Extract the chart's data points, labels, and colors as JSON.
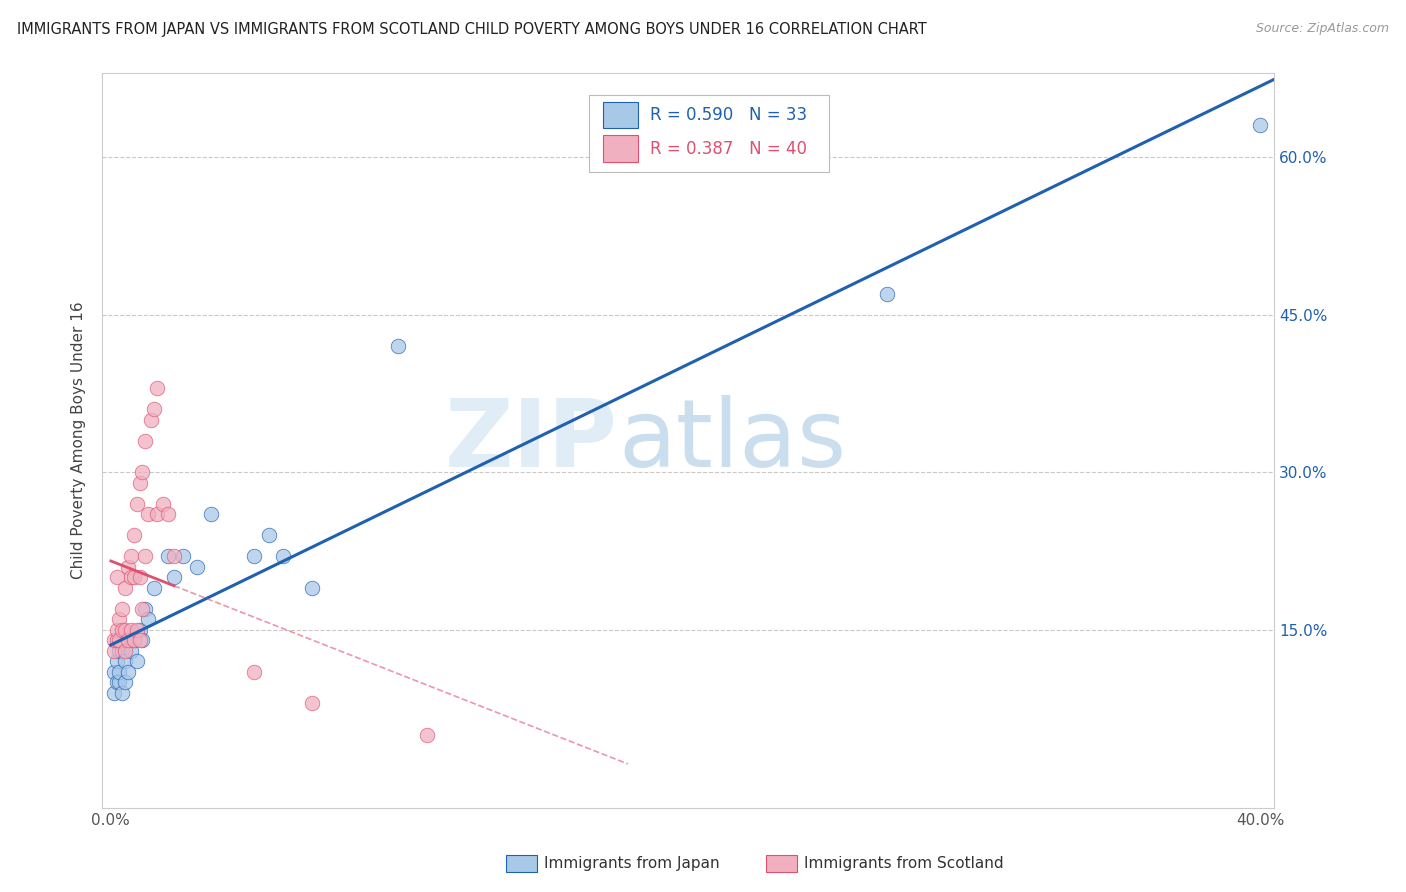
{
  "title": "IMMIGRANTS FROM JAPAN VS IMMIGRANTS FROM SCOTLAND CHILD POVERTY AMONG BOYS UNDER 16 CORRELATION CHART",
  "source": "Source: ZipAtlas.com",
  "ylabel": "Child Poverty Among Boys Under 16",
  "xticklabels": [
    "0.0%",
    "",
    "",
    "",
    "40.0%"
  ],
  "yticklabels": [
    "15.0%",
    "30.0%",
    "45.0%",
    "60.0%"
  ],
  "xlim": [
    -0.003,
    0.405
  ],
  "ylim": [
    -0.02,
    0.68
  ],
  "legend_label1": "Immigrants from Japan",
  "legend_label2": "Immigrants from Scotland",
  "R1": "0.590",
  "N1": "33",
  "R2": "0.387",
  "N2": "40",
  "color_japan": "#a8c8e8",
  "color_japan_line": "#2060b0",
  "color_scotland": "#f0b0c0",
  "color_scotland_line": "#e05070",
  "background_color": "#ffffff",
  "grid_color": "#bbbbbb",
  "japan_x": [
    0.001,
    0.001,
    0.002,
    0.002,
    0.003,
    0.003,
    0.003,
    0.004,
    0.004,
    0.005,
    0.005,
    0.005,
    0.006,
    0.007,
    0.008,
    0.009,
    0.01,
    0.011,
    0.012,
    0.013,
    0.015,
    0.02,
    0.022,
    0.025,
    0.03,
    0.035,
    0.05,
    0.055,
    0.06,
    0.07,
    0.1,
    0.27,
    0.4
  ],
  "japan_y": [
    0.09,
    0.11,
    0.1,
    0.12,
    0.1,
    0.11,
    0.13,
    0.09,
    0.13,
    0.1,
    0.12,
    0.14,
    0.11,
    0.13,
    0.14,
    0.12,
    0.15,
    0.14,
    0.17,
    0.16,
    0.19,
    0.22,
    0.2,
    0.22,
    0.21,
    0.26,
    0.22,
    0.24,
    0.22,
    0.19,
    0.42,
    0.47,
    0.63
  ],
  "scotland_x": [
    0.001,
    0.001,
    0.002,
    0.002,
    0.002,
    0.003,
    0.003,
    0.004,
    0.004,
    0.005,
    0.005,
    0.005,
    0.006,
    0.006,
    0.007,
    0.007,
    0.007,
    0.008,
    0.008,
    0.008,
    0.009,
    0.009,
    0.01,
    0.01,
    0.01,
    0.011,
    0.011,
    0.012,
    0.012,
    0.013,
    0.014,
    0.015,
    0.016,
    0.016,
    0.018,
    0.02,
    0.022,
    0.05,
    0.07,
    0.11
  ],
  "scotland_y": [
    0.13,
    0.14,
    0.14,
    0.15,
    0.2,
    0.14,
    0.16,
    0.15,
    0.17,
    0.13,
    0.15,
    0.19,
    0.14,
    0.21,
    0.15,
    0.2,
    0.22,
    0.14,
    0.2,
    0.24,
    0.15,
    0.27,
    0.14,
    0.2,
    0.29,
    0.17,
    0.3,
    0.22,
    0.33,
    0.26,
    0.35,
    0.36,
    0.26,
    0.38,
    0.27,
    0.26,
    0.22,
    0.11,
    0.08,
    0.05
  ],
  "watermark_zip": "ZIP",
  "watermark_atlas": "atlas"
}
